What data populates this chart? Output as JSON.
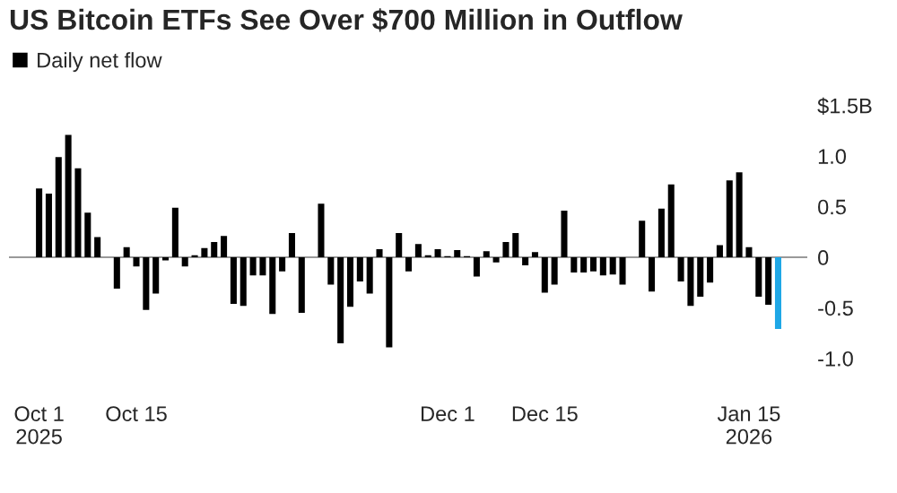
{
  "chart_data": {
    "type": "bar",
    "title": "US Bitcoin ETFs See Over $700 Million in Outflow",
    "categories": [
      "Oct 1\n2025",
      null,
      null,
      null,
      null,
      null,
      null,
      null,
      null,
      null,
      "Oct 15",
      null,
      null,
      null,
      null,
      null,
      null,
      null,
      null,
      null,
      null,
      null,
      null,
      null,
      null,
      null,
      null,
      null,
      null,
      null,
      null,
      null,
      null,
      null,
      null,
      null,
      null,
      null,
      null,
      null,
      null,
      null,
      "Dec 1",
      null,
      null,
      null,
      null,
      null,
      null,
      null,
      null,
      null,
      "Dec 15",
      null,
      null,
      null,
      null,
      null,
      null,
      null,
      null,
      null,
      null,
      null,
      null,
      null,
      null,
      null,
      null,
      null,
      null,
      null,
      null,
      "Jan 15\n2026",
      null,
      null,
      null
    ],
    "series": [
      {
        "name": "Daily net flow",
        "color": "#000000",
        "values": [
          0.68,
          0.63,
          0.99,
          1.21,
          0.88,
          0.44,
          0.2,
          null,
          -0.31,
          0.1,
          -0.09,
          -0.52,
          -0.36,
          -0.03,
          0.49,
          -0.09,
          0.02,
          0.09,
          0.15,
          0.21,
          -0.46,
          -0.48,
          -0.18,
          -0.18,
          -0.56,
          -0.14,
          0.24,
          -0.55,
          null,
          0.53,
          -0.27,
          -0.85,
          -0.49,
          -0.24,
          -0.36,
          0.08,
          -0.89,
          0.24,
          -0.14,
          0.13,
          0.02,
          0.08,
          0.01,
          0.07,
          0.01,
          -0.19,
          0.06,
          -0.05,
          0.15,
          0.24,
          -0.08,
          0.05,
          -0.35,
          -0.27,
          0.46,
          -0.15,
          -0.15,
          -0.14,
          -0.18,
          -0.17,
          -0.27,
          null,
          0.36,
          -0.34,
          0.48,
          0.72,
          -0.24,
          -0.48,
          -0.39,
          -0.25,
          0.12,
          0.76,
          0.84,
          0.1,
          -0.39,
          -0.47,
          -0.71
        ],
        "colors": [
          "#000000",
          "#000000",
          "#000000",
          "#000000",
          "#000000",
          "#000000",
          "#000000",
          "#000000",
          "#000000",
          "#000000",
          "#000000",
          "#000000",
          "#000000",
          "#000000",
          "#000000",
          "#000000",
          "#000000",
          "#000000",
          "#000000",
          "#000000",
          "#000000",
          "#000000",
          "#000000",
          "#000000",
          "#000000",
          "#000000",
          "#000000",
          "#000000",
          "#000000",
          "#000000",
          "#000000",
          "#000000",
          "#000000",
          "#000000",
          "#000000",
          "#000000",
          "#000000",
          "#000000",
          "#000000",
          "#000000",
          "#000000",
          "#000000",
          "#000000",
          "#000000",
          "#000000",
          "#000000",
          "#000000",
          "#000000",
          "#000000",
          "#000000",
          "#000000",
          "#000000",
          "#000000",
          "#000000",
          "#000000",
          "#000000",
          "#000000",
          "#000000",
          "#000000",
          "#000000",
          "#000000",
          "#000000",
          "#000000",
          "#000000",
          "#000000",
          "#000000",
          "#000000",
          "#000000",
          "#000000",
          "#000000",
          "#000000",
          "#000000",
          "#000000",
          "#000000",
          "#000000",
          "#000000",
          "#1ea7e6"
        ]
      }
    ],
    "ylim": [
      -1.0,
      1.5
    ],
    "yticks": [
      {
        "value": 1.5,
        "label": "$1.5B"
      },
      {
        "value": 1.0,
        "label": "1.0"
      },
      {
        "value": 0.5,
        "label": "0.5"
      },
      0,
      {
        "value": -0.5,
        "label": "-0.5"
      },
      {
        "value": -1.0,
        "label": "-1.0"
      }
    ],
    "ref_lines": [
      {
        "axis": "y",
        "value": 0,
        "color": "#999999"
      }
    ],
    "legend": "top left",
    "grid": false
  }
}
